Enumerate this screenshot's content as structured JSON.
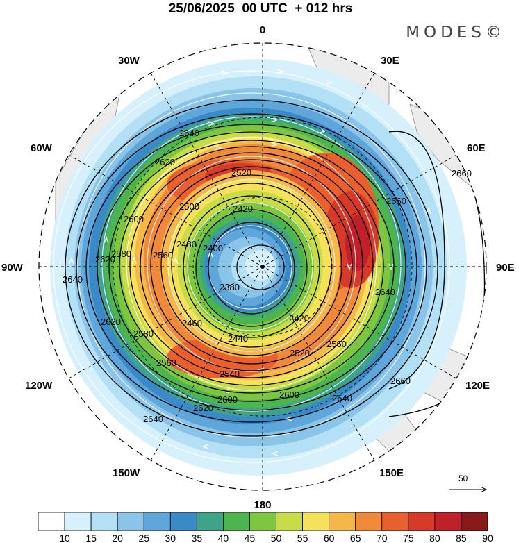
{
  "header": {
    "title": "25/06/2025  00 UTC  + 012 hrs",
    "brand": "MODES©"
  },
  "map": {
    "projection": "south-polar-stereographic",
    "longitude_labels": [
      {
        "id": "lon-0",
        "text": "0"
      },
      {
        "id": "lon-30e",
        "text": "30E"
      },
      {
        "id": "lon-60e",
        "text": "60E"
      },
      {
        "id": "lon-90e",
        "text": "90E"
      },
      {
        "id": "lon-120e",
        "text": "120E"
      },
      {
        "id": "lon-150e",
        "text": "150E"
      },
      {
        "id": "lon-180",
        "text": "180"
      },
      {
        "id": "lon-150w",
        "text": "150W"
      },
      {
        "id": "lon-120w",
        "text": "120W"
      },
      {
        "id": "lon-90w",
        "text": "90W"
      },
      {
        "id": "lon-60w",
        "text": "60W"
      },
      {
        "id": "lon-30w",
        "text": "30W"
      }
    ],
    "contour_labels": [
      "2640",
      "2620",
      "2600",
      "2580",
      "2560",
      "2540",
      "2520",
      "2500",
      "2480",
      "2460",
      "2440",
      "2420",
      "2400",
      "2380",
      "2660"
    ],
    "reference_vector": {
      "label": "50"
    },
    "colors": {
      "land": "#ececec",
      "contour": "#000000",
      "streamline": "#ffffff"
    }
  },
  "colorbar": {
    "labels": [
      "10",
      "15",
      "20",
      "25",
      "30",
      "35",
      "40",
      "45",
      "50",
      "55",
      "60",
      "65",
      "70",
      "75",
      "80",
      "85",
      "90"
    ],
    "colors": [
      "#ffffff",
      "#d6f0fc",
      "#b3e0f5",
      "#8ac4e8",
      "#5fa6db",
      "#3a8ac8",
      "#3fa38a",
      "#4cb54e",
      "#7ec640",
      "#c8dc48",
      "#f5e25a",
      "#f5b64a",
      "#f08a3a",
      "#e8602e",
      "#d83a2a",
      "#c0202a",
      "#8a1a1a"
    ]
  }
}
